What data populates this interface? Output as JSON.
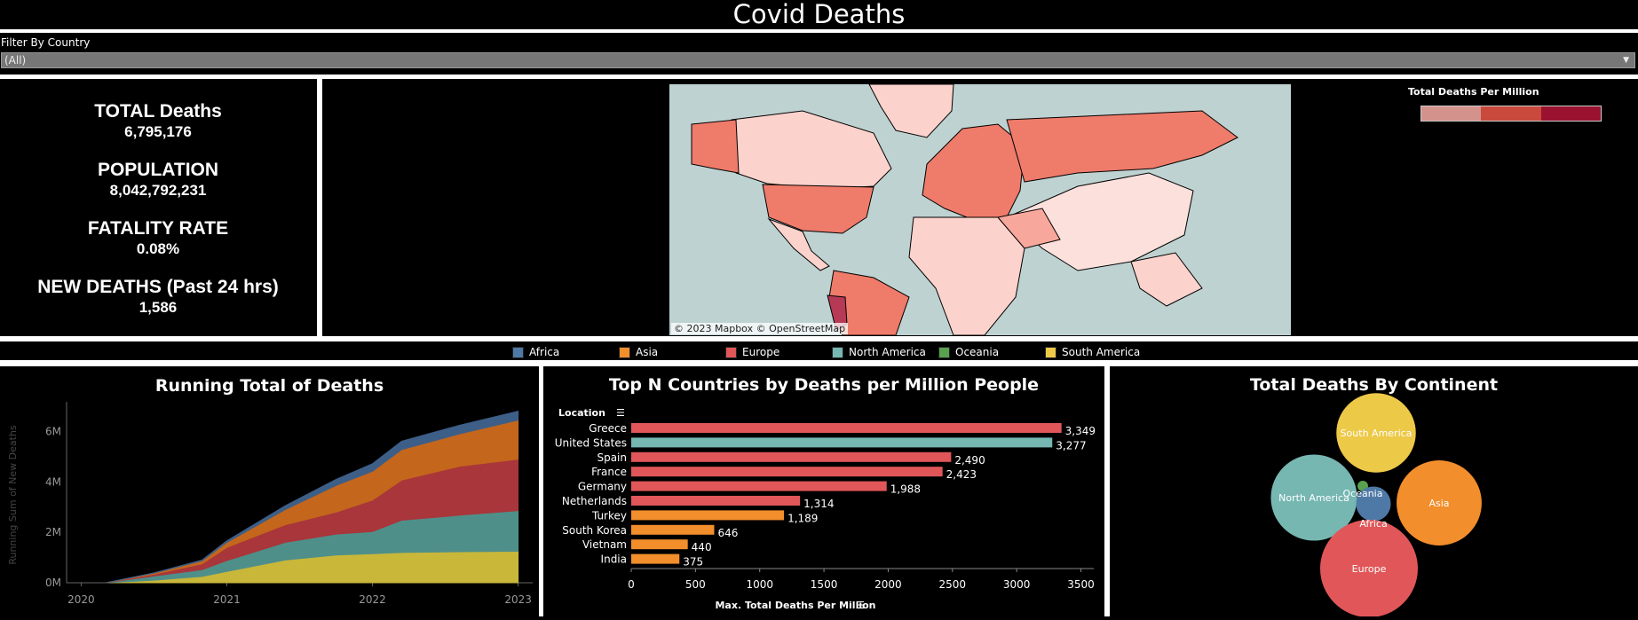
{
  "header": {
    "title": "Covid Deaths"
  },
  "filter": {
    "label": "Filter By Country",
    "value": "(All)"
  },
  "kpis": {
    "total_deaths_label": "TOTAL Deaths",
    "total_deaths_value": "6,795,176",
    "population_label": "POPULATION",
    "population_value": "8,042,792,231",
    "fatality_label": "FATALITY RATE",
    "fatality_value": "0.08%",
    "new_deaths_label": "NEW DEATHS (Past 24 hrs)",
    "new_deaths_value": "1,586"
  },
  "map": {
    "credit": "© 2023 Mapbox  © OpenStreetMap",
    "legend_title": "Total Deaths Per Million",
    "legend_colors": [
      "#d4928c",
      "#c94a3d",
      "#9b1230"
    ]
  },
  "continent_legend": [
    {
      "name": "Africa",
      "color": "#4e79a7"
    },
    {
      "name": "Asia",
      "color": "#f28e2b"
    },
    {
      "name": "Europe",
      "color": "#e15759"
    },
    {
      "name": "North America",
      "color": "#76b7b2"
    },
    {
      "name": "Oceania",
      "color": "#59a14f"
    },
    {
      "name": "South America",
      "color": "#edc948"
    }
  ],
  "chart_data": [
    {
      "type": "area",
      "title": "Running Total of Deaths",
      "ylabel": "Running Sum of New Deaths",
      "xlabel": "",
      "x_ticks": [
        "2020",
        "2021",
        "2022",
        "2023"
      ],
      "y_ticks": [
        "0M",
        "2M",
        "4M",
        "6M"
      ],
      "ylim": [
        0,
        7000000
      ],
      "x": [
        2020.17,
        2020.5,
        2020.83,
        2021.0,
        2021.4,
        2021.75,
        2022.0,
        2022.2,
        2022.6,
        2023.0
      ],
      "series": [
        {
          "name": "South America",
          "color": "#c9b73a",
          "values": [
            0,
            100000,
            250000,
            450000,
            900000,
            1100000,
            1150000,
            1200000,
            1230000,
            1250000
          ]
        },
        {
          "name": "North America",
          "color": "#4f8f8a",
          "values": [
            0,
            170000,
            270000,
            430000,
            700000,
            830000,
            880000,
            1280000,
            1450000,
            1610000
          ]
        },
        {
          "name": "Europe",
          "color": "#a8363a",
          "values": [
            0,
            70000,
            230000,
            520000,
            700000,
            870000,
            1250000,
            1590000,
            1940000,
            2040000
          ]
        },
        {
          "name": "Asia",
          "color": "#c4661c",
          "values": [
            0,
            40000,
            120000,
            200000,
            600000,
            1060000,
            1140000,
            1210000,
            1290000,
            1550000
          ]
        },
        {
          "name": "Africa",
          "color": "#3d5f87",
          "values": [
            0,
            10000,
            30000,
            60000,
            150000,
            240000,
            300000,
            330000,
            340000,
            350000
          ]
        }
      ]
    },
    {
      "type": "bar",
      "title": "Top N Countries by Deaths per Million People",
      "ylabel": "Location",
      "xlabel": "Max. Total Deaths Per Million",
      "x_ticks": [
        "0",
        "500",
        "1000",
        "1500",
        "2000",
        "2500",
        "3000",
        "3500"
      ],
      "xlim": [
        0,
        3600
      ],
      "categories": [
        "Greece",
        "United States",
        "Spain",
        "France",
        "Germany",
        "Netherlands",
        "Turkey",
        "South Korea",
        "Vietnam",
        "India"
      ],
      "values": [
        3349,
        3277,
        2490,
        2423,
        1988,
        1314,
        1189,
        646,
        440,
        375
      ],
      "value_labels": [
        "3,349",
        "3,277",
        "2,490",
        "2,423",
        "1,988",
        "1,314",
        "1,189",
        "646",
        "440",
        "375"
      ],
      "colors": [
        "#e15759",
        "#76b7b2",
        "#e15759",
        "#e15759",
        "#e15759",
        "#e15759",
        "#f28e2b",
        "#f28e2b",
        "#f28e2b",
        "#f28e2b"
      ]
    },
    {
      "type": "bubble",
      "title": "Total Deaths By Continent",
      "items": [
        {
          "name": "South America",
          "label": "South America",
          "color": "#edc948",
          "value": 1350000
        },
        {
          "name": "North America",
          "label": "North America",
          "color": "#76b7b2",
          "value": 1590000
        },
        {
          "name": "Asia",
          "label": "Asia",
          "color": "#f28e2b",
          "value": 1550000
        },
        {
          "name": "Oceania",
          "label": "Oceania",
          "color": "#59a14f",
          "value": 24000
        },
        {
          "name": "Africa",
          "label": "Africa",
          "color": "#4e79a7",
          "value": 258000
        },
        {
          "name": "Europe",
          "label": "Europe",
          "color": "#e15759",
          "value": 2040000
        }
      ]
    }
  ]
}
